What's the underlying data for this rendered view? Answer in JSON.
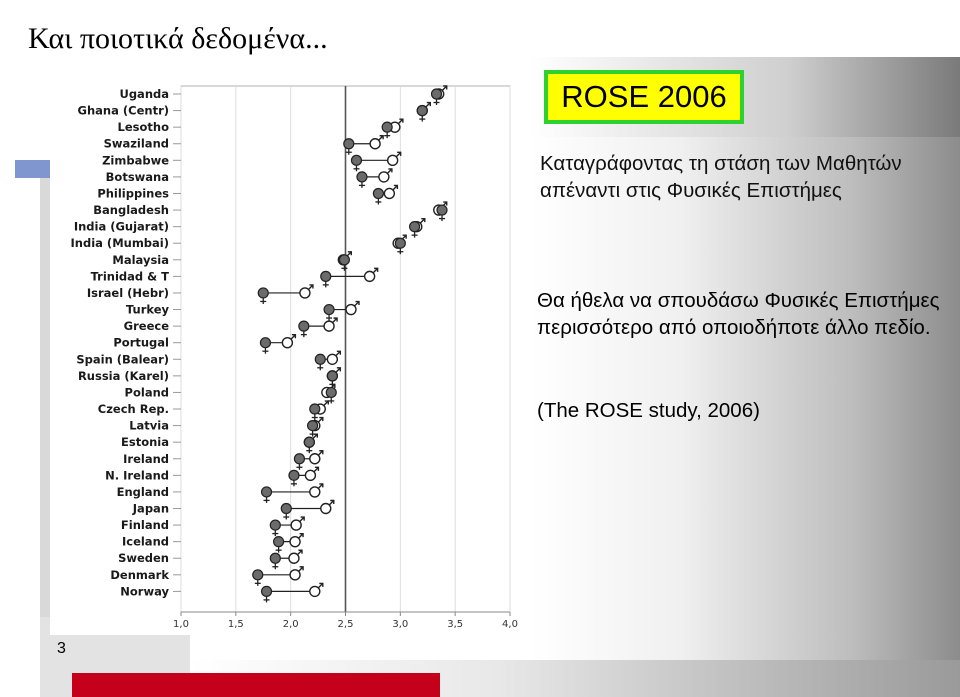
{
  "slide": {
    "title": "Και ποιοτικά δεδομένα...",
    "badge": "ROSE 2006",
    "description": "Καταγράφοντας τη στάση των Μαθητών απέναντι στις Φυσικές Επιστήμες",
    "quote": "Θα ήθελα να σπουδάσω Φυσικές Επιστήμες περισσότερο από οποιοδήποτε άλλο πεδίο.",
    "citation": "(The ROSE study, 2006)",
    "page_number": "3",
    "colors": {
      "badge_bg": "#ffff00",
      "badge_border": "#2fd12f",
      "bottom_bar": "#c4001a",
      "female_marker": "#6b6b6b"
    },
    "icons": [
      "female-symbol-icon",
      "male-symbol-icon"
    ]
  },
  "chart_data": {
    "type": "scatter",
    "title": "",
    "xlabel": "",
    "ylabel": "",
    "xlim": [
      1.0,
      4.0
    ],
    "xticks": [
      "1,0",
      "1,5",
      "2,0",
      "2,5",
      "3,0",
      "3,5",
      "4,0"
    ],
    "reference_line": 2.5,
    "categories": [
      "Uganda",
      "Ghana (Centr)",
      "Lesotho",
      "Swaziland",
      "Zimbabwe",
      "Botswana",
      "Philippines",
      "Bangladesh",
      "India (Gujarat)",
      "India (Mumbai)",
      "Malaysia",
      "Trinidad & T",
      "Israel (Hebr)",
      "Turkey",
      "Greece",
      "Portugal",
      "Spain (Balear)",
      "Russia (Karel)",
      "Poland",
      "Czech Rep.",
      "Latvia",
      "Estonia",
      "Ireland",
      "N. Ireland",
      "England",
      "Japan",
      "Finland",
      "Iceland",
      "Sweden",
      "Denmark",
      "Norway"
    ],
    "series": [
      {
        "values": [
          3.33,
          3.2,
          2.88,
          2.53,
          2.6,
          2.65,
          2.8,
          3.38,
          3.13,
          3.0,
          2.49,
          2.32,
          1.75,
          2.35,
          2.12,
          1.77,
          2.27,
          2.38,
          2.37,
          2.22,
          2.2,
          2.17,
          2.08,
          2.03,
          1.78,
          1.96,
          1.86,
          1.89,
          1.86,
          1.7,
          1.78
        ]
      },
      {
        "values": [
          3.35,
          3.2,
          2.95,
          2.77,
          2.93,
          2.85,
          2.9,
          3.35,
          3.15,
          2.98,
          2.48,
          2.72,
          2.13,
          2.55,
          2.35,
          1.97,
          2.38,
          2.38,
          2.33,
          2.27,
          2.22,
          2.17,
          2.22,
          2.18,
          2.22,
          2.32,
          2.05,
          2.04,
          2.03,
          2.04,
          2.22
        ]
      }
    ]
  }
}
